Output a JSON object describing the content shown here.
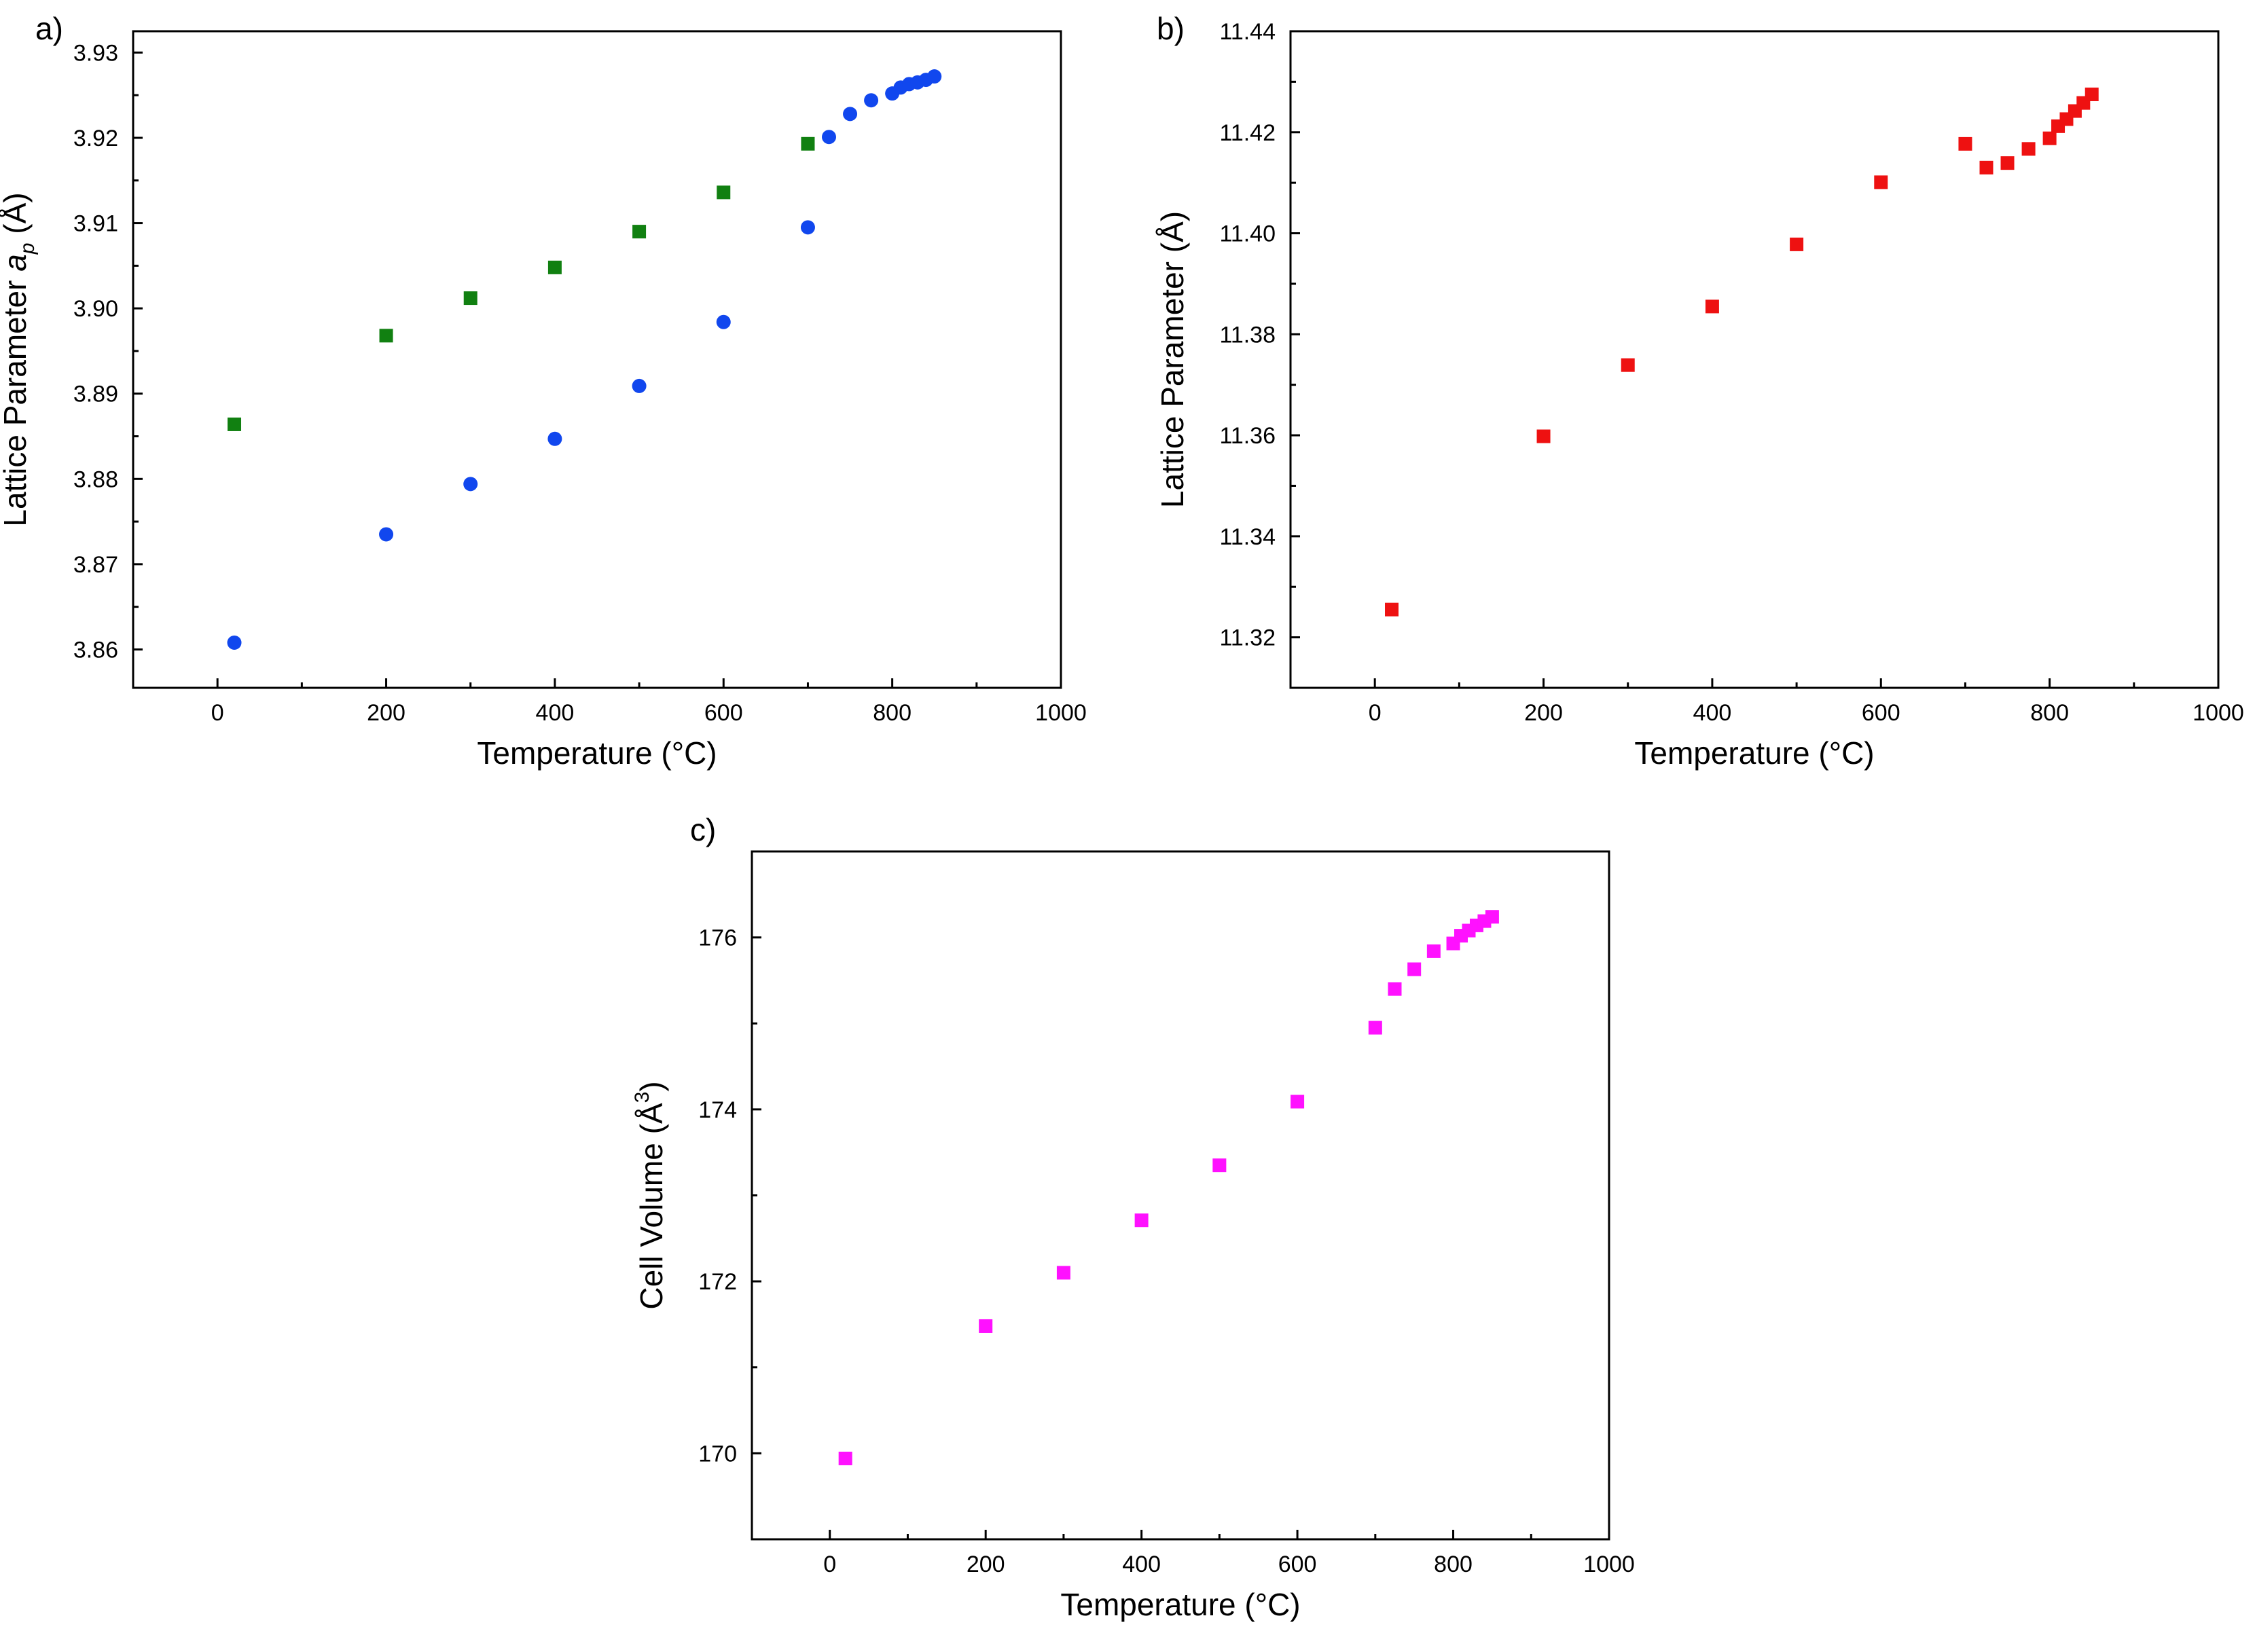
{
  "chart_data": [
    {
      "panel_label": "a)",
      "type": "scatter",
      "xlabel": "Temperature (°C)",
      "ylabel": {
        "prefix": "Lattice Parameter ",
        "var": "a",
        "sub": "p",
        "suffix": " (Å)"
      },
      "xlim": [
        -100,
        1000
      ],
      "ylim": [
        3.8555,
        3.9325
      ],
      "xticks": [
        0,
        200,
        400,
        600,
        800,
        1000
      ],
      "yticks": [
        3.86,
        3.87,
        3.88,
        3.89,
        3.9,
        3.91,
        3.92,
        3.93
      ],
      "ytick_labels": [
        "3.86",
        "3.87",
        "3.88",
        "3.89",
        "3.90",
        "3.91",
        "3.92",
        "3.93"
      ],
      "grid": false,
      "series": [
        {
          "name": "green squares",
          "marker": "square",
          "color": "#118011",
          "x": [
            20,
            200,
            300,
            400,
            500,
            600,
            700
          ],
          "y": [
            3.8864,
            3.8968,
            3.9012,
            3.9048,
            3.909,
            3.9136,
            3.9193
          ]
        },
        {
          "name": "blue circles",
          "marker": "circle",
          "color": "#1147ee",
          "x": [
            20,
            200,
            300,
            400,
            500,
            600,
            700,
            725,
            750,
            775,
            800,
            810,
            820,
            830,
            840,
            850
          ],
          "y": [
            3.8608,
            3.8735,
            3.8794,
            3.8847,
            3.8909,
            3.8984,
            3.9095,
            3.9201,
            3.9228,
            3.9244,
            3.9252,
            3.9259,
            3.9263,
            3.9265,
            3.9268,
            3.9272
          ]
        }
      ]
    },
    {
      "panel_label": "b)",
      "type": "scatter",
      "xlabel": "Temperature (°C)",
      "ylabel": {
        "prefix": "Lattice Parameter (Å)",
        "var": "",
        "sub": "",
        "suffix": ""
      },
      "xlim": [
        -100,
        1000
      ],
      "ylim": [
        11.31,
        11.44
      ],
      "xticks": [
        0,
        200,
        400,
        600,
        800,
        1000
      ],
      "yticks": [
        11.32,
        11.34,
        11.36,
        11.38,
        11.4,
        11.42,
        11.44
      ],
      "ytick_labels": [
        "11.32",
        "11.34",
        "11.36",
        "11.38",
        "11.40",
        "11.42",
        "11.44"
      ],
      "grid": false,
      "series": [
        {
          "name": "red squares",
          "marker": "square",
          "color": "#ee1111",
          "x": [
            20,
            200,
            300,
            400,
            500,
            600,
            700,
            725,
            750,
            775,
            800,
            810,
            820,
            830,
            840,
            850
          ],
          "y": [
            11.3255,
            11.3598,
            11.3739,
            11.3855,
            11.3978,
            11.4101,
            11.4177,
            11.413,
            11.4139,
            11.4167,
            11.4188,
            11.4212,
            11.4226,
            11.4242,
            11.4258,
            11.4275
          ]
        }
      ]
    },
    {
      "panel_label": "c)",
      "type": "scatter",
      "xlabel": "Temperature (°C)",
      "ylabel": {
        "prefix": "Cell Volume (Å",
        "var": "",
        "sub": "",
        "sup": "3",
        "suffix": ")"
      },
      "xlim": [
        -100,
        1000
      ],
      "ylim": [
        169.0,
        177.0
      ],
      "xticks": [
        0,
        200,
        400,
        600,
        800,
        1000
      ],
      "yticks": [
        170,
        172,
        174,
        176
      ],
      "ytick_labels": [
        "170",
        "172",
        "174",
        "176"
      ],
      "grid": false,
      "series": [
        {
          "name": "magenta squares",
          "marker": "square",
          "color": "#ff11ff",
          "x": [
            20,
            200,
            300,
            400,
            500,
            600,
            700,
            725,
            750,
            775,
            800,
            810,
            820,
            830,
            840,
            850
          ],
          "y": [
            169.94,
            171.48,
            172.1,
            172.71,
            173.35,
            174.09,
            174.95,
            175.4,
            175.63,
            175.84,
            175.93,
            176.02,
            176.08,
            176.14,
            176.19,
            176.24
          ]
        }
      ]
    }
  ]
}
